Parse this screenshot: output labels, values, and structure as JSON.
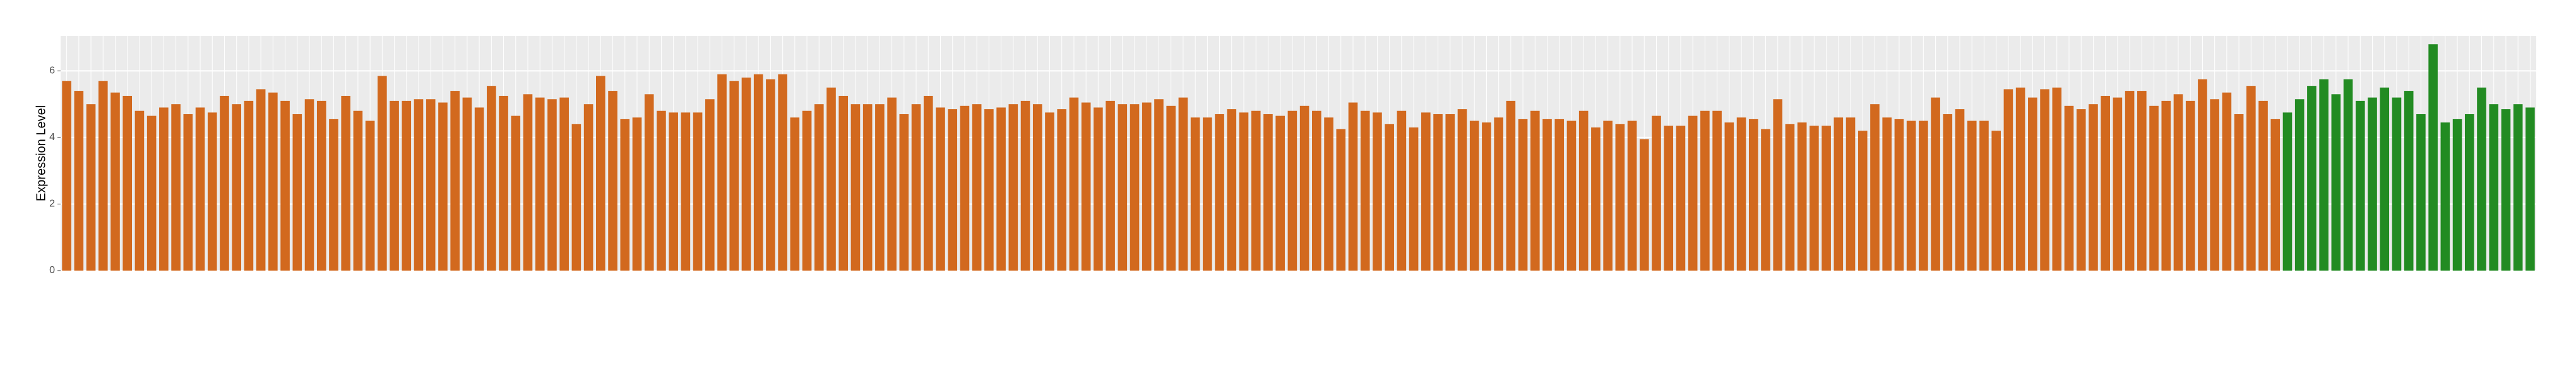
{
  "chart_data": {
    "type": "bar",
    "y_label": "Expression Level",
    "categories": [
      null,
      null,
      null,
      null,
      null,
      null,
      null,
      null,
      null,
      null,
      null,
      null,
      null,
      null,
      null,
      null,
      null,
      null,
      null,
      null,
      null,
      null,
      null,
      null,
      null,
      null,
      null,
      null,
      null,
      null,
      null,
      null,
      null,
      null,
      null,
      null,
      null,
      null,
      null,
      null,
      null,
      null,
      null,
      null,
      null,
      null,
      null,
      null,
      null,
      null,
      null,
      null,
      null,
      null,
      null,
      null,
      null,
      null,
      null,
      null,
      null,
      null,
      null,
      null,
      null,
      null,
      null,
      null,
      null,
      null,
      null,
      null,
      null,
      null,
      null,
      null,
      null,
      null,
      null,
      null,
      null,
      null,
      null,
      null,
      null,
      null,
      null,
      null,
      null,
      null,
      null,
      null,
      null,
      null,
      null,
      null,
      null,
      null,
      null,
      null,
      null,
      null,
      null,
      null,
      null,
      null,
      null,
      null,
      null,
      null,
      null,
      null,
      null,
      null,
      null,
      null,
      null,
      null,
      null,
      null,
      null,
      null,
      null,
      null,
      null,
      null,
      null,
      null,
      null,
      null,
      null,
      null,
      null,
      null,
      null,
      null,
      null,
      null,
      null,
      null,
      null,
      null,
      null,
      null,
      null,
      null,
      null,
      null,
      null,
      null,
      null,
      null,
      null,
      null,
      null,
      null,
      null,
      null,
      null,
      null,
      null,
      null,
      null,
      null,
      null,
      null,
      null,
      null,
      null,
      null,
      null,
      null,
      null,
      null,
      null,
      null,
      null,
      null,
      null,
      null,
      null,
      null,
      null,
      null,
      null,
      null,
      null,
      null,
      null,
      null,
      null,
      null,
      null,
      null,
      null,
      null,
      null,
      null,
      null,
      null,
      null,
      null,
      null,
      null
    ],
    "values": [
      5.7,
      5.4,
      5.0,
      5.7,
      5.35,
      5.25,
      4.8,
      4.65,
      4.9,
      5.0,
      4.7,
      4.9,
      4.75,
      5.25,
      5.0,
      5.1,
      5.45,
      5.35,
      5.1,
      4.7,
      5.15,
      5.1,
      4.55,
      5.25,
      4.8,
      4.5,
      5.85,
      5.1,
      5.1,
      5.15,
      5.15,
      5.05,
      5.4,
      5.2,
      4.9,
      5.55,
      5.25,
      4.65,
      5.3,
      5.2,
      5.15,
      5.2,
      4.4,
      5.0,
      5.85,
      5.4,
      4.55,
      4.6,
      5.3,
      4.8,
      4.75,
      4.75,
      4.75,
      5.15,
      5.9,
      5.7,
      5.8,
      5.9,
      5.75,
      5.9,
      4.6,
      4.8,
      5.0,
      5.5,
      5.25,
      5.0,
      5.0,
      5.0,
      5.2,
      4.7,
      5.0,
      5.25,
      4.9,
      4.85,
      4.95,
      5.0,
      4.85,
      4.9,
      5.0,
      5.1,
      5.0,
      4.75,
      4.85,
      5.2,
      5.05,
      4.9,
      5.1,
      5.0,
      5.0,
      5.05,
      5.15,
      4.95,
      5.2,
      4.6,
      4.6,
      4.7,
      4.85,
      4.75,
      4.8,
      4.7,
      4.65,
      4.8,
      4.95,
      4.8,
      4.6,
      4.25,
      5.05,
      4.8,
      4.75,
      4.4,
      4.8,
      4.3,
      4.75,
      4.7,
      4.7,
      4.85,
      4.5,
      4.45,
      4.6,
      5.1,
      4.55,
      4.8,
      4.55,
      4.55,
      4.5,
      4.8,
      4.3,
      4.5,
      4.4,
      4.5,
      3.95,
      4.65,
      4.35,
      4.35,
      4.65,
      4.8,
      4.8,
      4.45,
      4.6,
      4.55,
      4.25,
      5.15,
      4.4,
      4.45,
      4.35,
      4.35,
      4.6,
      4.6,
      4.2,
      5.0,
      4.6,
      4.55,
      4.5,
      4.5,
      5.2,
      4.7,
      4.85,
      4.5,
      4.5,
      4.2,
      5.45,
      5.5,
      5.2,
      5.45,
      5.5,
      4.95,
      4.85,
      5.0,
      5.25,
      5.2,
      5.4,
      5.4,
      4.95,
      5.1,
      5.3,
      5.1,
      5.75,
      5.15,
      5.35,
      4.7,
      5.55,
      5.1,
      4.55,
      4.75,
      5.15,
      5.55,
      5.75,
      5.3,
      5.75,
      5.1,
      5.2,
      5.5,
      5.2,
      5.4,
      4.7,
      6.8,
      4.45,
      4.55,
      4.7,
      5.5,
      5.0,
      4.85,
      5.0,
      4.9
    ],
    "colors": [
      "#d2691e",
      "#d2691e",
      "#d2691e",
      "#d2691e",
      "#d2691e",
      "#d2691e",
      "#d2691e",
      "#d2691e",
      "#d2691e",
      "#d2691e",
      "#d2691e",
      "#d2691e",
      "#d2691e",
      "#d2691e",
      "#d2691e",
      "#d2691e",
      "#d2691e",
      "#d2691e",
      "#d2691e",
      "#d2691e",
      "#d2691e",
      "#d2691e",
      "#d2691e",
      "#d2691e",
      "#d2691e",
      "#d2691e",
      "#d2691e",
      "#d2691e",
      "#d2691e",
      "#d2691e",
      "#d2691e",
      "#d2691e",
      "#d2691e",
      "#d2691e",
      "#d2691e",
      "#d2691e",
      "#d2691e",
      "#d2691e",
      "#d2691e",
      "#d2691e",
      "#d2691e",
      "#d2691e",
      "#d2691e",
      "#d2691e",
      "#d2691e",
      "#d2691e",
      "#d2691e",
      "#d2691e",
      "#d2691e",
      "#d2691e",
      "#d2691e",
      "#d2691e",
      "#d2691e",
      "#d2691e",
      "#d2691e",
      "#d2691e",
      "#d2691e",
      "#d2691e",
      "#d2691e",
      "#d2691e",
      "#d2691e",
      "#d2691e",
      "#d2691e",
      "#d2691e",
      "#d2691e",
      "#d2691e",
      "#d2691e",
      "#d2691e",
      "#d2691e",
      "#d2691e",
      "#d2691e",
      "#d2691e",
      "#d2691e",
      "#d2691e",
      "#d2691e",
      "#d2691e",
      "#d2691e",
      "#d2691e",
      "#d2691e",
      "#d2691e",
      "#d2691e",
      "#d2691e",
      "#d2691e",
      "#d2691e",
      "#d2691e",
      "#d2691e",
      "#d2691e",
      "#d2691e",
      "#d2691e",
      "#d2691e",
      "#d2691e",
      "#d2691e",
      "#d2691e",
      "#d2691e",
      "#d2691e",
      "#d2691e",
      "#d2691e",
      "#d2691e",
      "#d2691e",
      "#d2691e",
      "#d2691e",
      "#d2691e",
      "#d2691e",
      "#d2691e",
      "#d2691e",
      "#d2691e",
      "#d2691e",
      "#d2691e",
      "#d2691e",
      "#d2691e",
      "#d2691e",
      "#d2691e",
      "#d2691e",
      "#d2691e",
      "#d2691e",
      "#d2691e",
      "#d2691e",
      "#d2691e",
      "#d2691e",
      "#d2691e",
      "#d2691e",
      "#d2691e",
      "#d2691e",
      "#d2691e",
      "#d2691e",
      "#d2691e",
      "#d2691e",
      "#d2691e",
      "#d2691e",
      "#d2691e",
      "#d2691e",
      "#d2691e",
      "#d2691e",
      "#d2691e",
      "#d2691e",
      "#d2691e",
      "#d2691e",
      "#d2691e",
      "#d2691e",
      "#d2691e",
      "#d2691e",
      "#d2691e",
      "#d2691e",
      "#d2691e",
      "#d2691e",
      "#d2691e",
      "#d2691e",
      "#d2691e",
      "#d2691e",
      "#d2691e",
      "#d2691e",
      "#d2691e",
      "#d2691e",
      "#d2691e",
      "#d2691e",
      "#d2691e",
      "#d2691e",
      "#d2691e",
      "#d2691e",
      "#d2691e",
      "#d2691e",
      "#d2691e",
      "#d2691e",
      "#d2691e",
      "#d2691e",
      "#d2691e",
      "#d2691e",
      "#d2691e",
      "#d2691e",
      "#d2691e",
      "#d2691e",
      "#d2691e",
      "#d2691e",
      "#d2691e",
      "#d2691e",
      "#d2691e",
      "#d2691e",
      "#d2691e",
      "#d2691e",
      "#d2691e",
      "#d2691e",
      "#d2691e",
      "#d2691e",
      "#228b22",
      "#228b22",
      "#228b22",
      "#228b22",
      "#228b22",
      "#228b22",
      "#228b22",
      "#228b22",
      "#228b22",
      "#228b22",
      "#228b22",
      "#228b22",
      "#228b22",
      "#228b22",
      "#228b22",
      "#228b22",
      "#228b22",
      "#228b22",
      "#228b22",
      "#228b22",
      "#228b22"
    ],
    "ylim": [
      0,
      7.05
    ],
    "yticks": [
      0,
      2,
      4,
      6
    ],
    "grid": true
  }
}
